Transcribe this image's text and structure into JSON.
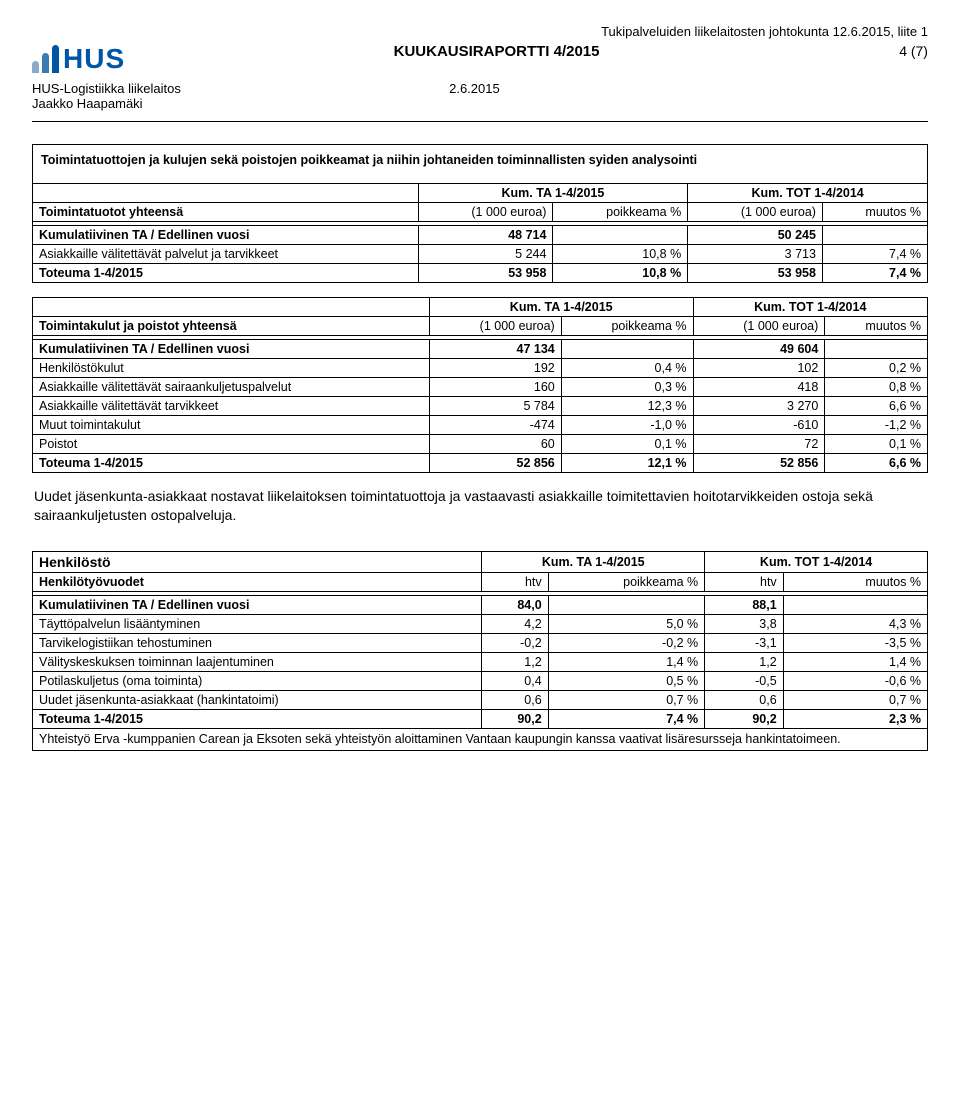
{
  "colors": {
    "logo_b1": "#8aa8c8",
    "logo_b2": "#3b7bb5",
    "logo_b3": "#0055a5",
    "hus_text": "#0055a5"
  },
  "header": {
    "top_right": "Tukipalveluiden liikelaitosten johtokunta 12.6.2015, liite 1",
    "report_title": "KUUKAUSIRAPORTTI 4/2015",
    "page": "4 (7)",
    "org": "HUS-Logistiikka liikelaitos",
    "author": "Jaakko Haapamäki",
    "date": "2.6.2015",
    "hus": "HUS"
  },
  "box1": {
    "title": "Toimintatuottojen ja kulujen sekä poistojen poikkeamat ja niihin johtaneiden toiminnallisten syiden analysointi",
    "col_a": "Kum. TA 1-4/2015",
    "col_b": "Kum. TOT 1-4/2014",
    "row_series_label": "Toimintatuotot yhteensä",
    "u1": "(1 000 euroa)",
    "u2": "poikkeama %",
    "u3": "(1 000 euroa)",
    "u4": "muutos %",
    "r_base_label": "Kumulatiivinen TA / Edellinen vuosi",
    "r_base_v1": "48 714",
    "r_base_v3": "50 245",
    "r1_label": "Asiakkaille välitettävät palvelut ja tarvikkeet",
    "r1_v1": "5 244",
    "r1_v2": "10,8 %",
    "r1_v3": "3 713",
    "r1_v4": "7,4 %",
    "r_tot_label": "Toteuma 1-4/2015",
    "r_tot_v1": "53 958",
    "r_tot_v2": "10,8 %",
    "r_tot_v3": "53 958",
    "r_tot_v4": "7,4 %"
  },
  "box2": {
    "col_a": "Kum. TA 1-4/2015",
    "col_b": "Kum. TOT 1-4/2014",
    "row_series_label": "Toimintakulut ja poistot yhteensä",
    "u1": "(1 000 euroa)",
    "u2": "poikkeama %",
    "u3": "(1 000 euroa)",
    "u4": "muutos %",
    "r_base_label": "Kumulatiivinen TA / Edellinen vuosi",
    "r_base_v1": "47 134",
    "r_base_v3": "49 604",
    "rows": [
      {
        "label": "Henkilöstökulut",
        "v1": "192",
        "v2": "0,4 %",
        "v3": "102",
        "v4": "0,2 %"
      },
      {
        "label": "Asiakkaille välitettävät sairaankuljetuspalvelut",
        "v1": "160",
        "v2": "0,3 %",
        "v3": "418",
        "v4": "0,8 %"
      },
      {
        "label": "Asiakkaille välitettävät tarvikkeet",
        "v1": "5 784",
        "v2": "12,3 %",
        "v3": "3 270",
        "v4": "6,6 %"
      },
      {
        "label": "Muut toimintakulut",
        "v1": "-474",
        "v2": "-1,0 %",
        "v3": "-610",
        "v4": "-1,2 %"
      },
      {
        "label": "Poistot",
        "v1": "60",
        "v2": "0,1 %",
        "v3": "72",
        "v4": "0,1 %"
      }
    ],
    "r_tot_label": "Toteuma 1-4/2015",
    "r_tot_v1": "52 856",
    "r_tot_v2": "12,1 %",
    "r_tot_v3": "52 856",
    "r_tot_v4": "6,6 %"
  },
  "para1": "Uudet jäsenkunta-asiakkaat nostavat liikelaitoksen toimintatuottoja ja vastaavasti asiakkaille toimitettavien hoitotarvikkeiden ostoja sekä sairaankuljetusten ostopalveluja.",
  "box3": {
    "title": "Henkilöstö",
    "col_a": "Kum. TA 1-4/2015",
    "col_b": "Kum. TOT 1-4/2014",
    "row_series_label": "Henkilötyövuodet",
    "u1": "htv",
    "u2": "poikkeama %",
    "u3": "htv",
    "u4": "muutos %",
    "r_base_label": "Kumulatiivinen TA / Edellinen vuosi",
    "r_base_v1": "84,0",
    "r_base_v3": "88,1",
    "rows": [
      {
        "label": "Täyttöpalvelun lisääntyminen",
        "v1": "4,2",
        "v2": "5,0 %",
        "v3": "3,8",
        "v4": "4,3 %"
      },
      {
        "label": "Tarvikelogistiikan tehostuminen",
        "v1": "-0,2",
        "v2": "-0,2 %",
        "v3": "-3,1",
        "v4": "-3,5 %"
      },
      {
        "label": "Välityskeskuksen toiminnan laajentuminen",
        "v1": "1,2",
        "v2": "1,4 %",
        "v3": "1,2",
        "v4": "1,4 %"
      },
      {
        "label": "Potilaskuljetus (oma toiminta)",
        "v1": "0,4",
        "v2": "0,5 %",
        "v3": "-0,5",
        "v4": "-0,6 %"
      },
      {
        "label": "Uudet jäsenkunta-asiakkaat (hankintatoimi)",
        "v1": "0,6",
        "v2": "0,7 %",
        "v3": "0,6",
        "v4": "0,7 %"
      }
    ],
    "r_tot_label": "Toteuma 1-4/2015",
    "r_tot_v1": "90,2",
    "r_tot_v2": "7,4 %",
    "r_tot_v3": "90,2",
    "r_tot_v4": "2,3 %",
    "footer": "Yhteistyö Erva -kumppanien Carean ja Eksoten sekä yhteistyön aloittaminen Vantaan kaupungin kanssa vaativat lisäresursseja hankintatoimeen."
  }
}
